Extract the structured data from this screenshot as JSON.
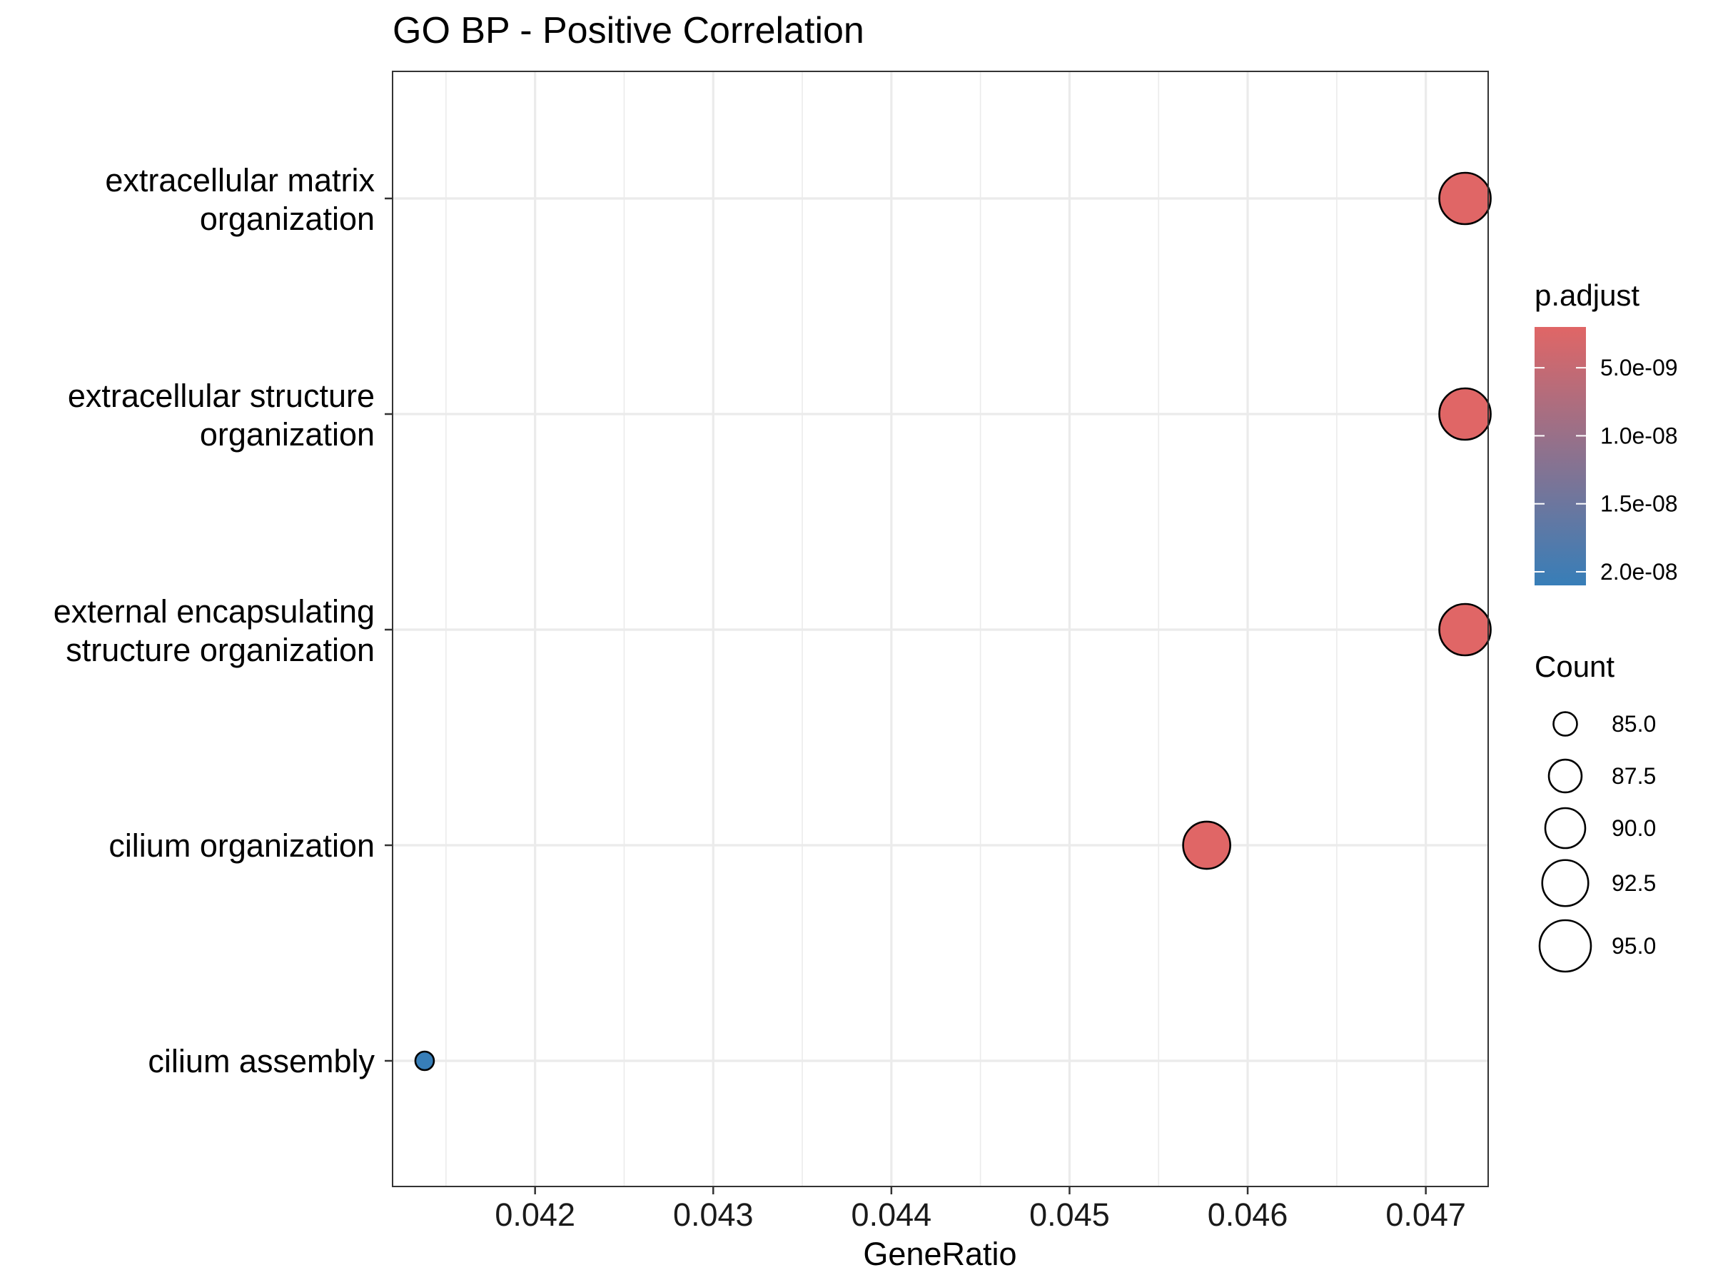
{
  "chart_data": {
    "type": "scatter",
    "title": "GO BP - Positive Correlation",
    "xlabel": "GeneRatio",
    "ylabel": "",
    "xlim": [
      0.0412,
      0.04735
    ],
    "x_ticks": [
      "0.042",
      "0.043",
      "0.044",
      "0.045",
      "0.046",
      "0.047"
    ],
    "x_tick_values": [
      0.042,
      0.043,
      0.044,
      0.045,
      0.046,
      0.047
    ],
    "categories": [
      "extracellular matrix\norganization",
      "extracellular structure\norganization",
      "external encapsulating\nstructure organization",
      "cilium organization",
      "cilium assembly"
    ],
    "points": [
      {
        "term": "extracellular matrix organization",
        "x": 0.04722,
        "count": 95,
        "p_adjust": 2e-09
      },
      {
        "term": "extracellular structure organization",
        "x": 0.04722,
        "count": 95,
        "p_adjust": 2e-09
      },
      {
        "term": "external encapsulating structure organization",
        "x": 0.04722,
        "count": 95,
        "p_adjust": 2e-09
      },
      {
        "term": "cilium organization",
        "x": 0.04577,
        "count": 93,
        "p_adjust": 2e-09
      },
      {
        "term": "cilium assembly",
        "x": 0.04138,
        "count": 84,
        "p_adjust": 2.1e-08
      }
    ],
    "grid": true,
    "legend": {
      "placement": "right",
      "color": {
        "title": "p.adjust",
        "range": [
          2e-09,
          2.1e-08
        ],
        "ticks": [
          "5.0e-09",
          "1.0e-08",
          "1.5e-08",
          "2.0e-08"
        ],
        "tick_values": [
          5e-09,
          1e-08,
          1.5e-08,
          2e-08
        ],
        "low_color": "#e06666",
        "high_color": "#377eb8"
      },
      "size": {
        "title": "Count",
        "labels": [
          "85.0",
          "87.5",
          "90.0",
          "92.5",
          "95.0"
        ],
        "values": [
          85.0,
          87.5,
          90.0,
          92.5,
          95.0
        ]
      }
    }
  }
}
